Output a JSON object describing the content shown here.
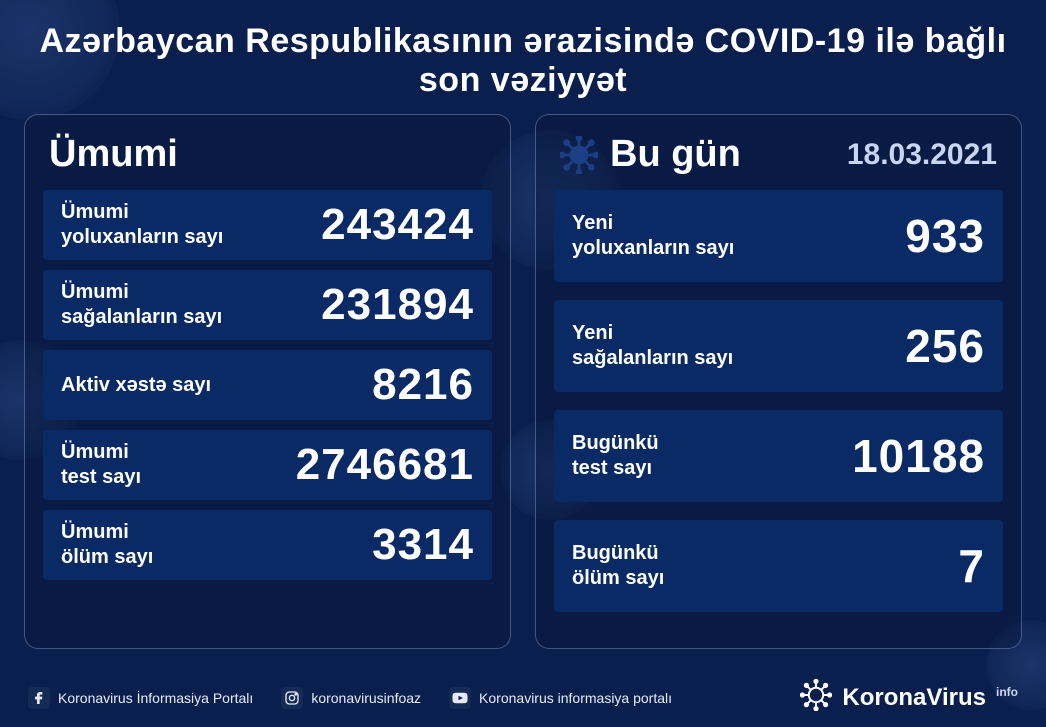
{
  "colors": {
    "background": "#0a1f4d",
    "panel_border": "rgba(180,200,240,0.35)",
    "row_bg": "#0a2a66",
    "text": "#ffffff",
    "muted": "#c9d6f2"
  },
  "title": "Azərbaycan Respublikasının ərazisində COVID-19 ilə bağlı son vəziyyət",
  "panels": {
    "total": {
      "title": "Ümumi",
      "rows": [
        {
          "label": "Ümumi\nyoluxanların sayı",
          "value": "243424"
        },
        {
          "label": "Ümumi\nsağalanların sayı",
          "value": "231894"
        },
        {
          "label": "Aktiv xəstə sayı",
          "value": "8216"
        },
        {
          "label": "Ümumi\ntest sayı",
          "value": "2746681"
        },
        {
          "label": "Ümumi\nölüm sayı",
          "value": "3314"
        }
      ]
    },
    "today": {
      "title": "Bu gün",
      "date": "18.03.2021",
      "rows": [
        {
          "label": "Yeni\nyoluxanların sayı",
          "value": "933"
        },
        {
          "label": "Yeni\nsağalanların sayı",
          "value": "256"
        },
        {
          "label": "Bugünkü\ntest sayı",
          "value": "10188"
        },
        {
          "label": "Bugünkü\nölüm sayı",
          "value": "7"
        }
      ]
    }
  },
  "footer": {
    "facebook": "Koronavirus İnformasiya Portalı",
    "instagram": "koronavirusinfoaz",
    "youtube": "Koronavirus informasiya portalı",
    "brand": "KoronaVirus",
    "brand_suffix": "info"
  }
}
